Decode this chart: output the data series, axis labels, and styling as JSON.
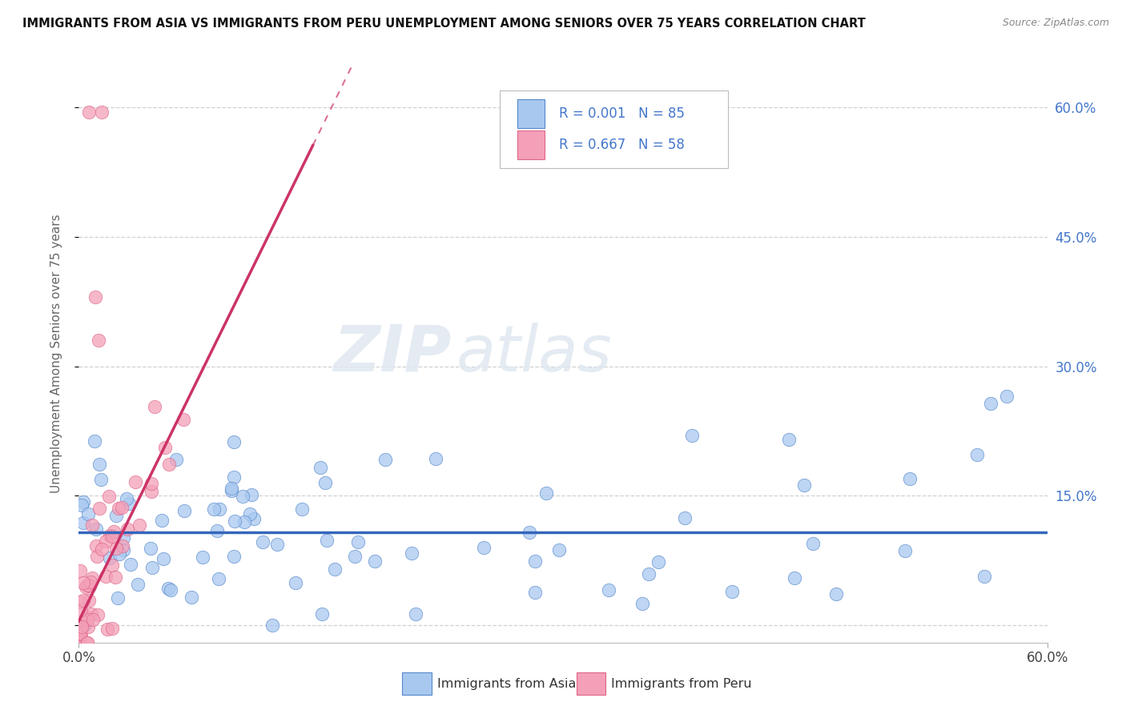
{
  "title": "IMMIGRANTS FROM ASIA VS IMMIGRANTS FROM PERU UNEMPLOYMENT AMONG SENIORS OVER 75 YEARS CORRELATION CHART",
  "source": "Source: ZipAtlas.com",
  "ylabel": "Unemployment Among Seniors over 75 years",
  "legend_labels": [
    "Immigrants from Asia",
    "Immigrants from Peru"
  ],
  "legend_r": [
    "R = 0.001",
    "N = 85"
  ],
  "legend_r2": [
    "R = 0.667",
    "N = 58"
  ],
  "xlim": [
    0.0,
    0.6
  ],
  "ylim": [
    -0.02,
    0.65
  ],
  "yticks": [
    0.0,
    0.15,
    0.3,
    0.45,
    0.6
  ],
  "xticks": [
    0.0,
    0.6
  ],
  "xtick_labels": [
    "0.0%",
    "60.0%"
  ],
  "ytick_labels_right": [
    "",
    "15.0%",
    "30.0%",
    "45.0%",
    "60.0%"
  ],
  "color_asia": "#a8c8f0",
  "color_peru": "#f4a0b8",
  "color_asia_edge": "#5588cc",
  "color_peru_edge": "#dd6688",
  "color_asia_line": "#3366bb",
  "color_peru_line": "#cc3366",
  "watermark_zip": "ZIP",
  "watermark_atlas": "atlas",
  "r_color": "#4477cc",
  "asia_line_y": 0.108,
  "peru_line_slope": 3.8,
  "peru_line_intercept": 0.005,
  "peru_line_solid_end": 0.145
}
